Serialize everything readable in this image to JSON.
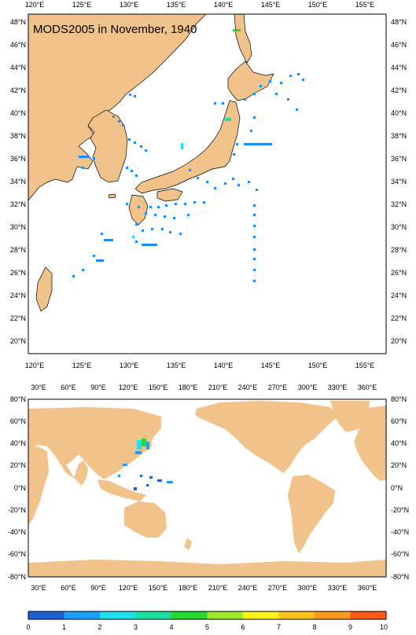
{
  "title": "MODS2005 in November, 1940",
  "colors": {
    "land": "#f1c38a",
    "ocean": "#ffffff",
    "scale": [
      "#1f5fd6",
      "#1aa0ff",
      "#1ee0ee",
      "#19e0a0",
      "#22d930",
      "#9fe82a",
      "#fff31e",
      "#ffc21a",
      "#ff9a1a",
      "#ff5a14"
    ]
  },
  "top_map": {
    "lon_labels": [
      "120°E",
      "125°E",
      "130°E",
      "135°E",
      "140°E",
      "145°E",
      "150°E",
      "155°E"
    ],
    "lat_labels": [
      "48°N",
      "46°N",
      "44°N",
      "42°N",
      "40°N",
      "38°N",
      "36°N",
      "34°N",
      "32°N",
      "30°N",
      "28°N",
      "26°N",
      "24°N",
      "22°N",
      "20°N"
    ]
  },
  "bottom_map": {
    "lon_labels": [
      "30°E",
      "60°E",
      "90°E",
      "120°E",
      "150°E",
      "180°E",
      "210°E",
      "240°E",
      "270°E",
      "300°E",
      "330°E",
      "360°E"
    ],
    "lat_labels": [
      "80°N",
      "60°N",
      "40°N",
      "20°N",
      "0°N",
      "-20°N",
      "-40°N",
      "-60°N",
      "-80°N"
    ]
  },
  "colorbar": {
    "labels": [
      "0",
      "1",
      "2",
      "3",
      "4",
      "5",
      "6",
      "7",
      "8",
      "9",
      "10"
    ]
  }
}
